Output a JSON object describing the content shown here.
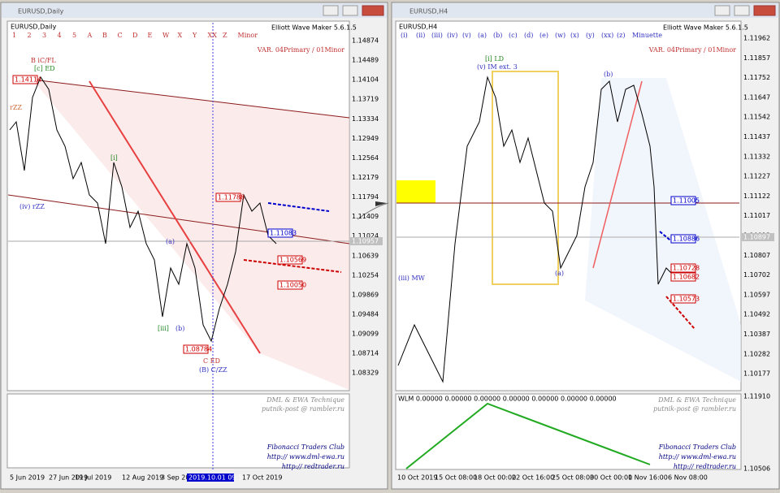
{
  "left": {
    "title": "EURUSD,Daily",
    "symbol": "EURUSD,Daily",
    "buttons": [
      "1",
      "2",
      "3",
      "4",
      "5",
      "A",
      "B",
      "C",
      "D",
      "E",
      "W",
      "X",
      "Y",
      "XX",
      "Z",
      "Minor"
    ],
    "tool": "Elliott Wave Maker 5.6.1.5",
    "variant": "VAR. 04Primary / 01Minor",
    "prices": [
      "1.14874",
      "1.14489",
      "1.14104",
      "1.13719",
      "1.13334",
      "1.12949",
      "1.12564",
      "1.12179",
      "1.11794",
      "1.11409",
      "1.11024",
      "1.10639",
      "1.10254",
      "1.09869",
      "1.09484",
      "1.09099",
      "1.08714",
      "1.08329"
    ],
    "current": "1.10957",
    "dates": [
      "5 Jun 2019",
      "27 Jun 2019",
      "19 Jul 2019",
      "12 Aug 2019",
      "3 Sep 2019",
      "2019.10.01 09:59",
      "17 Oct 2019"
    ],
    "levels": [
      "1.14114",
      "1.11788",
      "1.11083",
      "1.10569",
      "1.10050",
      "1.08784"
    ],
    "waves": [
      "B iC/FL",
      "[c] ED",
      "C ED",
      "(B) C/ZZ",
      "rZZ",
      "(iv) rZZ",
      "[i]",
      "[iii]",
      "(b)",
      "(a)"
    ],
    "footer": [
      "DML & EWA Technique",
      "putnik-post @ rambler.ru",
      "Fibonacci Traders Club",
      "http:// www.dml-ewa.ru",
      "http:// redtrader.ru"
    ]
  },
  "right": {
    "title": "EURUSD,H4",
    "symbol": "EURUSD,H4",
    "buttons": [
      "(i)",
      "(ii)",
      "(iii)",
      "(iv)",
      "(v)",
      "(a)",
      "(b)",
      "(c)",
      "(d)",
      "(e)",
      "(w)",
      "(x)",
      "(y)",
      "(xx)",
      "(z)",
      "Minuette"
    ],
    "tool": "Elliott Wave Maker 5.6.1.5",
    "variant": "VAR. 04Primary / 01Minor",
    "prices": [
      "1.11962",
      "1.11857",
      "1.11752",
      "1.11647",
      "1.11542",
      "1.11437",
      "1.11332",
      "1.11227",
      "1.11122",
      "1.11017",
      "1.10912",
      "1.10807",
      "1.10702",
      "1.10597",
      "1.10492",
      "1.10387",
      "1.10282",
      "1.10177"
    ],
    "current": "1.10897",
    "dates": [
      "10 Oct 2019",
      "15 Oct 08:00",
      "18 Oct 00:00",
      "22 Oct 16:00",
      "25 Oct 08:00",
      "30 Oct 00:00",
      "1 Nov 16:00",
      "6 Nov 08:00"
    ],
    "levels": [
      "1.11005",
      "1.10886",
      "1.10728",
      "1.10682",
      "1.10573"
    ],
    "waves": [
      "[i] LD",
      "(v) IM ext. 3",
      "(b)",
      "(a)",
      "(iii) MW"
    ],
    "indicator": "WLM 0.00000 0.00000 0.00000 0.00000 0.00000 0.00000 0.00000",
    "indicator_prices": [
      "1.11910",
      "1.10506"
    ],
    "footer": [
      "DML & EWA Technique",
      "putnik-post @ rambler.ru",
      "Fibonacci Traders Club",
      "http:// www.dml-ewa.ru",
      "http:// redtrader.ru"
    ]
  }
}
